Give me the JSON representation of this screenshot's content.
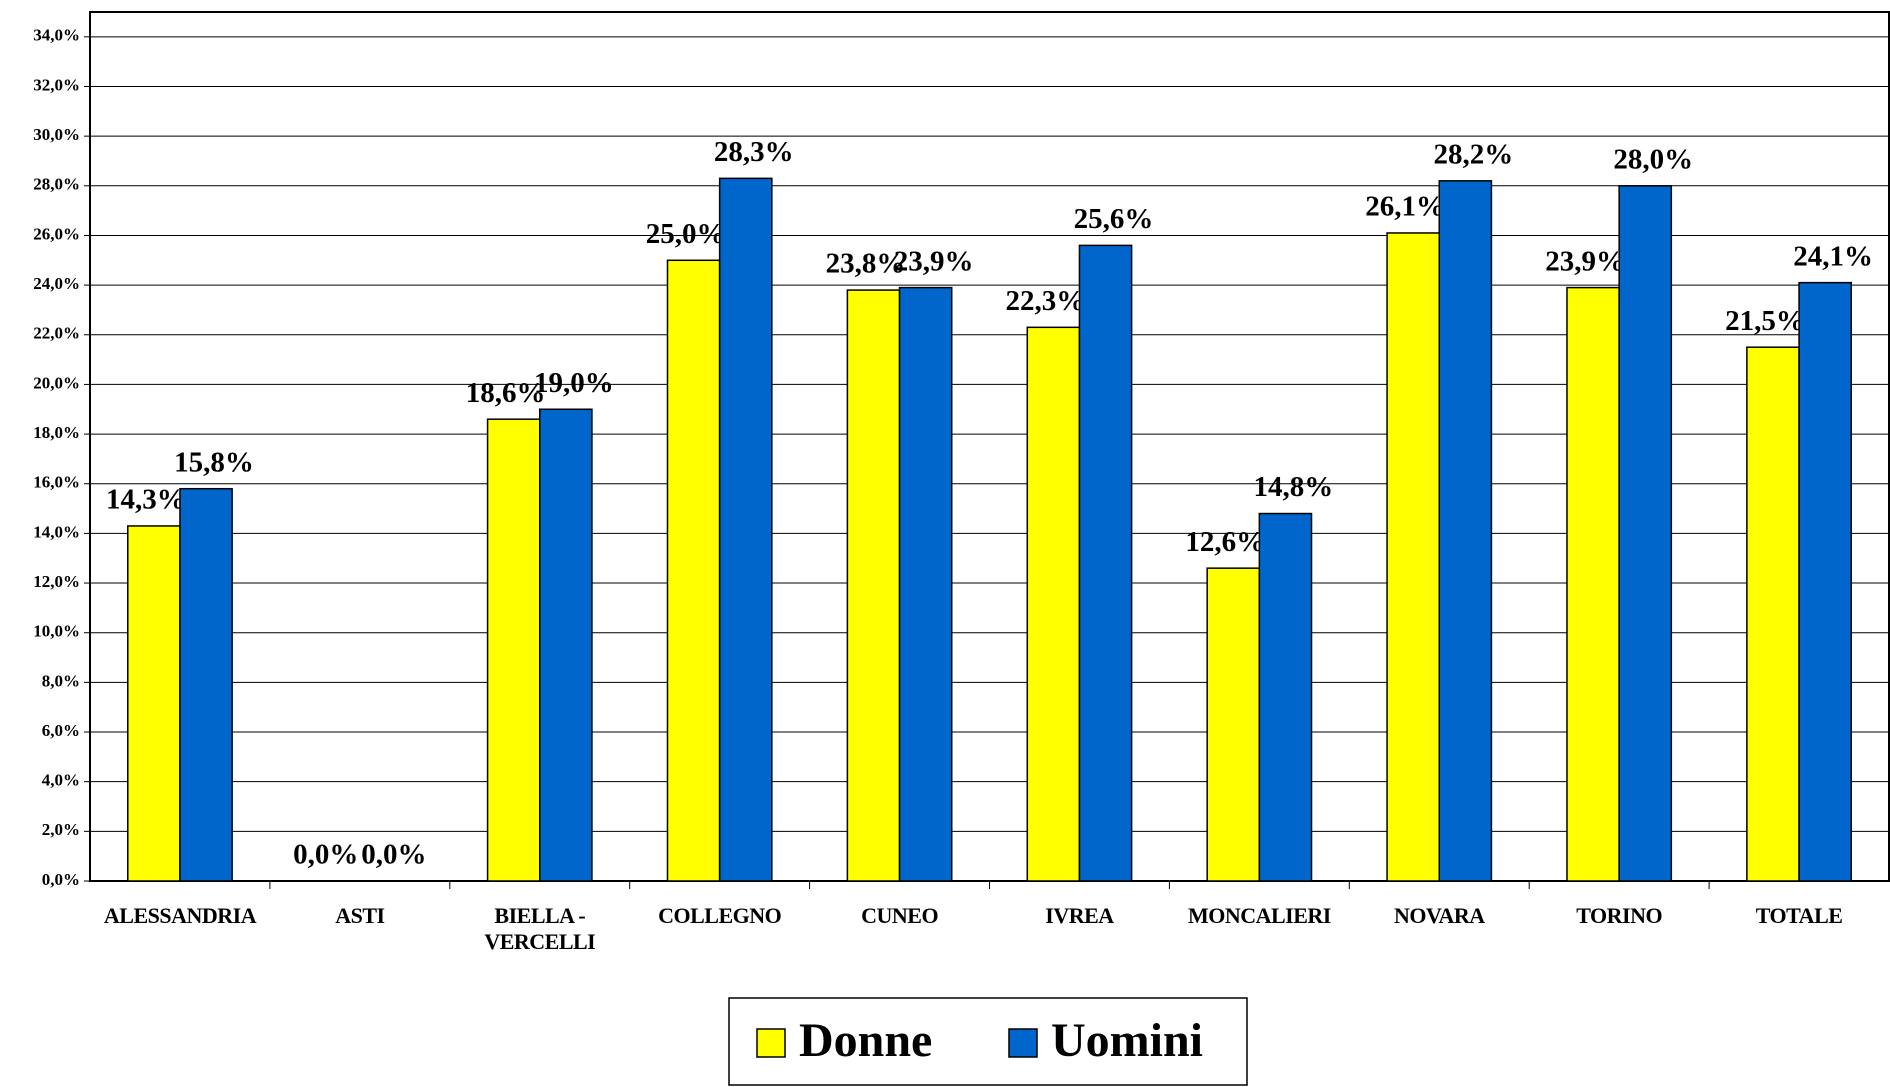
{
  "chart_data": {
    "type": "bar",
    "categories": [
      "ALESSANDRIA",
      "ASTI",
      "BIELLA - VERCELLI",
      "COLLEGNO",
      "CUNEO",
      "IVREA",
      "MONCALIERI",
      "NOVARA",
      "TORINO",
      "TOTALE"
    ],
    "series": [
      {
        "name": "Donne",
        "color": "#ffff00",
        "values": [
          14.3,
          0,
          18.6,
          25.0,
          23.8,
          22.3,
          12.6,
          26.1,
          23.9,
          21.5
        ],
        "value_labels": [
          "14,3%",
          "0,0%",
          "18,6%",
          "25,0%",
          "23,8%",
          "22,3%",
          "12,6%",
          "26,1%",
          "23,9%",
          "21,5%"
        ]
      },
      {
        "name": "Uomini",
        "color": "#0066cc",
        "values": [
          15.8,
          0,
          19.0,
          28.3,
          23.9,
          25.6,
          14.8,
          28.2,
          28.0,
          24.1
        ],
        "value_labels": [
          "15,8%",
          "0,0%",
          "19,0%",
          "28,3%",
          "23,9%",
          "25,6%",
          "14,8%",
          "28,2%",
          "28,0%",
          "24,1%"
        ]
      }
    ],
    "ylim": [
      0,
      35
    ],
    "yticks": [
      {
        "value": 0,
        "label": "0,0%"
      },
      {
        "value": 2,
        "label": "2,0%"
      },
      {
        "value": 4,
        "label": "4,0%"
      },
      {
        "value": 6,
        "label": "6,0%"
      },
      {
        "value": 8,
        "label": "8,0%"
      },
      {
        "value": 10,
        "label": "10,0%"
      },
      {
        "value": 12,
        "label": "12,0%"
      },
      {
        "value": 14,
        "label": "14,0%"
      },
      {
        "value": 16,
        "label": "16,0%"
      },
      {
        "value": 18,
        "label": "18,0%"
      },
      {
        "value": 20,
        "label": "20,0%"
      },
      {
        "value": 22,
        "label": "22,0%"
      },
      {
        "value": 24,
        "label": "24,0%"
      },
      {
        "value": 26,
        "label": "26,0%"
      },
      {
        "value": 28,
        "label": "28,0%"
      },
      {
        "value": 30,
        "label": "30,0%"
      },
      {
        "value": 32,
        "label": "32,0%"
      },
      {
        "value": 34,
        "label": "34,0%"
      }
    ],
    "grid": true
  }
}
